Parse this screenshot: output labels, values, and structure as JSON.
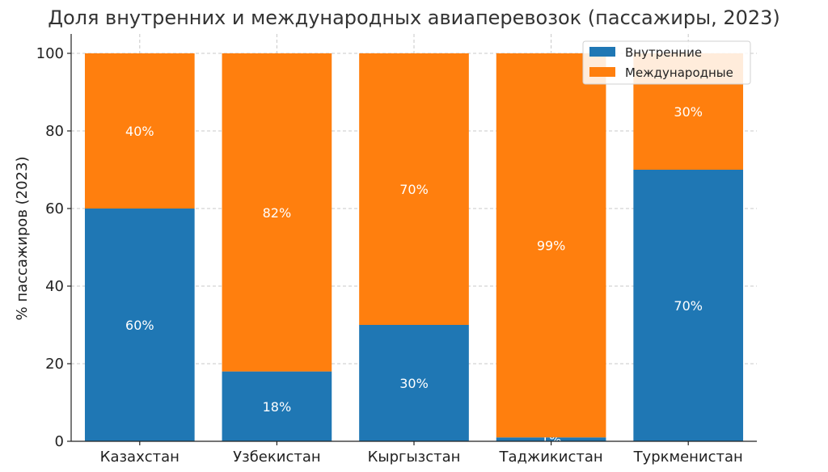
{
  "chart_data": {
    "type": "bar",
    "stacked": true,
    "title": "Доля внутренних и международных авиаперевозок (пассажиры, 2023)",
    "xlabel": "",
    "ylabel": "% пассажиров (2023)",
    "ylim": [
      0,
      105
    ],
    "yticks": [
      "0",
      "20",
      "40",
      "60",
      "80",
      "100"
    ],
    "grid": true,
    "legend_position": "top-right",
    "categories": [
      "Казахстан",
      "Узбекистан",
      "Кыргызстан",
      "Таджикистан",
      "Туркменистан"
    ],
    "series": [
      {
        "name": "Внутренние",
        "color": "#1f77b4",
        "values": [
          60,
          18,
          30,
          1,
          70
        ],
        "labels": [
          "60%",
          "18%",
          "30%",
          "1%",
          "70%"
        ]
      },
      {
        "name": "Международные",
        "color": "#ff7f0e",
        "values": [
          40,
          82,
          70,
          99,
          30
        ],
        "labels": [
          "40%",
          "82%",
          "70%",
          "99%",
          "30%"
        ]
      }
    ]
  }
}
